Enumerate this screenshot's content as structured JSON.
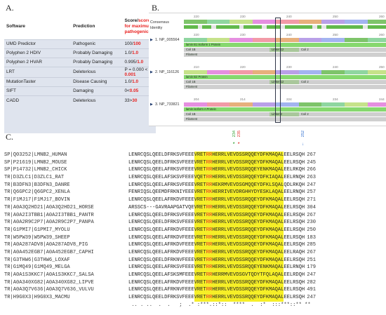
{
  "panel_letters": {
    "a": "A.",
    "b": "B.",
    "c": "C."
  },
  "panel_a": {
    "headers": {
      "software": "Software",
      "prediction": "Prediction",
      "score_black": "Score/",
      "score_red": "score for maximum pathogenicity"
    },
    "rows": [
      {
        "software": "UMD Predictor",
        "prediction": "Pathogenic",
        "score": "100/",
        "max": "100"
      },
      {
        "software": "Polyphen 2 HDIV",
        "prediction": "Probably Damaging",
        "score": "1.0/",
        "max": "1.0"
      },
      {
        "software": "Polyphen 2 HVAR",
        "prediction": "Probably Damaging",
        "score": "0.995/",
        "max": "1.0"
      },
      {
        "software": "LRT",
        "prediction": "Deleterious",
        "score": "P = 0.000 < ",
        "max": "0.001"
      },
      {
        "software": "MutationTaster",
        "prediction": "Disease Causing",
        "score": "1.0/",
        "max": "1.0"
      },
      {
        "software": "SIFT",
        "prediction": "Damaging",
        "score": "0<",
        "max": "0.05"
      },
      {
        "software": "CADD",
        "prediction": "Deleterious",
        "score": "33>",
        "max": "30"
      }
    ]
  },
  "panel_b": {
    "consensus_label": "Consensus",
    "identity_label": "Identity",
    "top_ruler": [
      "220",
      "230",
      "240",
      "250",
      "260"
    ],
    "sequences": [
      {
        "id": "1. NP_005564",
        "ruler": [
          "220",
          "230",
          "240",
          "250",
          "260"
        ],
        "isoform": "lamin B1 isoform 1 Protein",
        "coil": "Coil 1B",
        "linker": "Linker 12",
        "coil2": "Coil 2",
        "filament": "Filament"
      },
      {
        "id": "2. NP_116126",
        "ruler": [
          "210",
          "220",
          "230",
          "240",
          "250"
        ],
        "isoform": "lamin B2 Protein",
        "coil": "Coil 1B",
        "linker": "Linker 12",
        "coil2": "Coil 2",
        "filament": "Filament"
      },
      {
        "id": "3. NP_733821",
        "ruler": [
          "204",
          "214",
          "224",
          "234",
          "244"
        ],
        "isoform": "lamin isoform A Protein",
        "coil": "Coil 1B",
        "linker": "Linker 2",
        "coil2": "Coil 2",
        "filament": "Filament"
      }
    ]
  },
  "panel_c": {
    "markers": [
      {
        "label": "234",
        "color": "#2a9d2a"
      },
      {
        "label": "235",
        "color": "#e22b24"
      },
      {
        "label": "252",
        "color": "#2f6fd0"
      }
    ],
    "rows": [
      {
        "name": "SP|Q03252|LMNB2_HUMAN",
        "pre": "LENRCQSLQEELDFRKSVFEEE",
        "hl": "VRETRRHERRLVEVDSSRQQEYDFKMAQAL",
        "post": "EELRSQH",
        "num": "267"
      },
      {
        "name": "SP|P21619|LMNB2_MOUSE",
        "pre": "LENRCQSLQEELDFRKSVFEEE",
        "hl": "VRETRRHERRLVEVDSSRQQEYDFKMAQAL",
        "post": "EELRSQH",
        "num": "245"
      },
      {
        "name": "SP|P14732|LMNB2_CHICK",
        "pre": "LENRCQSLQEELAFRKSVFEEE",
        "hl": "VRETRRHERRLVEVDSSRQQEYENKMAQAL",
        "post": "EELRKQH",
        "num": "266"
      },
      {
        "name": "TR|D3ZLC1|D3ZLC1_RAT",
        "pre": "LENRCQSLQEELAFSKSVFEEE",
        "hl": "VQETRRHERRLVEVDSSRQQEYDFKIAQAL",
        "post": "EELRNQH",
        "num": "263"
      },
      {
        "name": "TR|B3DFN3|B3DFN3_DANRE",
        "pre": "LENRCQSLQEELAFRKSVFEEE",
        "hl": "VRETRRHEKRMVEVDSGMQQEYDFKLSQAL",
        "post": "QDLRKQH",
        "num": "247"
      },
      {
        "name": "TR|Q6GPC2|Q6GPC2_XENLA",
        "pre": "FENRIQSLQEEMDFRKNIYEEE",
        "hl": "VRETRKHERRIVEVDRGHHYDYESKLAQAL",
        "post": "EELRNQH",
        "num": "257"
      },
      {
        "name": "TR|F1MJ17|F1MJ17_BOVIN",
        "pre": "LENRCQSLQEELAFRKDVFEEE",
        "hl": "VRETRRHERRLVEVDSSRQQEYDFKMAQAL",
        "post": "EELRSQH",
        "num": "271"
      },
      {
        "name": "TR|A0A3Q2HD21|A0A3Q2HD21_HORSE",
        "pre": "ARSSCS---GAVRAAPGATVQE",
        "hl": "VRETRRHERRLVEVDSSRQQEYDFKMAQAL",
        "post": "EELRSQH",
        "num": "304"
      },
      {
        "name": "TR|A0A2I3TBB1|A0A2I3TBB1_PANTR",
        "pre": "LENRCQSLQEELDFRKSVFEEE",
        "hl": "VRETRRHERRLVEVDSSRQQEYDFKMAQAL",
        "post": "EELRSQH",
        "num": "267"
      },
      {
        "name": "TR|A0A2R9C2P7|A0A2R9C2P7_PANPA",
        "pre": "LENRCQSLQEELDFRKSVFEEE",
        "hl": "VRETRRHERRLVEVDSSRQQEYDFKMAQAL",
        "post": "EELRSQH",
        "num": "230"
      },
      {
        "name": "TR|G1PMI7|G1PMI7_MYOLU",
        "pre": "LENRCQSLQEELAFRKDVFEEE",
        "hl": "VRETRRHERRLVEVDSSRQQEYDFKMAQAL",
        "post": "EELRSQH",
        "num": "250"
      },
      {
        "name": "TR|W5PW39|W5PW39_SHEEP",
        "pre": "LENRCQSLQEELAFRKDVFEEE",
        "hl": "VRETRRHERRLVEVDSSRQQEYDFKMAQAL",
        "post": "EELRSQH",
        "num": "183"
      },
      {
        "name": "TR|A0A287ADV8|A0A287ADV8_PIG",
        "pre": "LENRCQSLQEELAFRKDVFEEE",
        "hl": "VRETRRHERRLVEVDSSRQQEYDFKMAQAL",
        "post": "EELRSQH",
        "num": "285"
      },
      {
        "name": "TR|A0A452EGB7|A0A452EGB7_CAPHI",
        "pre": "LENRCQSLQEELAFRKDVFEEE",
        "hl": "VRETRRHERRLVEVDSSRQQEYDFKMAQAL",
        "post": "EELRAQH",
        "num": "267"
      },
      {
        "name": "TR|G3THW6|G3THW6_LOXAF",
        "pre": "LENRCQSLQEELDFRKNVFEEE",
        "hl": "VRETRRHERRLVEVDSSRQQEYDFKMAQAL",
        "post": "EELRSQH",
        "num": "251"
      },
      {
        "name": "TR|G1MQ49|G1MQ49_MELGA",
        "pre": "LENRCQSLQEELAFRKSVFEEE",
        "hl": "VRETRRHERRLVEVDSSRQQEYENKMAQAL",
        "post": "EELRNQH",
        "num": "179"
      },
      {
        "name": "TR|A0A1S3KKC7|A0A1S3KKC7_SALSA",
        "pre": "LENRCQSLQEELAFSKSMFEEE",
        "hl": "VRETRRHERRMVEVDSGVTQDYTFQLAQAL",
        "post": "EELRDQH",
        "num": "247"
      },
      {
        "name": "TR|A0A340XG82|A0A340XG82_LIPVE",
        "pre": "LENRCQSLQEELAFRKDVFEEE",
        "hl": "VRETRRHERRLVEVDSSRQQEYDFKMAQAL",
        "post": "EELRSQH",
        "num": "282"
      },
      {
        "name": "TR|A0A3Q7V636|A0A3Q7V636_VULVU",
        "pre": "LENRCQSLQEELAFRKNVFEEE",
        "hl": "VRETRRHERRLVEVDSSRQQEYDFKMAQAL",
        "post": "EELRSQH",
        "num": "491"
      },
      {
        "name": "TR|H9G0X3|H9G0X3_MACMU",
        "pre": "LENRCQSLQEELDFRKSVFEEE",
        "hl": "VRETRRHERRLVEVDSSRQQEYDFKMAQAL",
        "post": "EELRSQH",
        "num": "247"
      }
    ],
    "consensus": " .. . ..  .  .   ;  .* :***.::*::  ****  .  :*  :::***::** **"
  }
}
